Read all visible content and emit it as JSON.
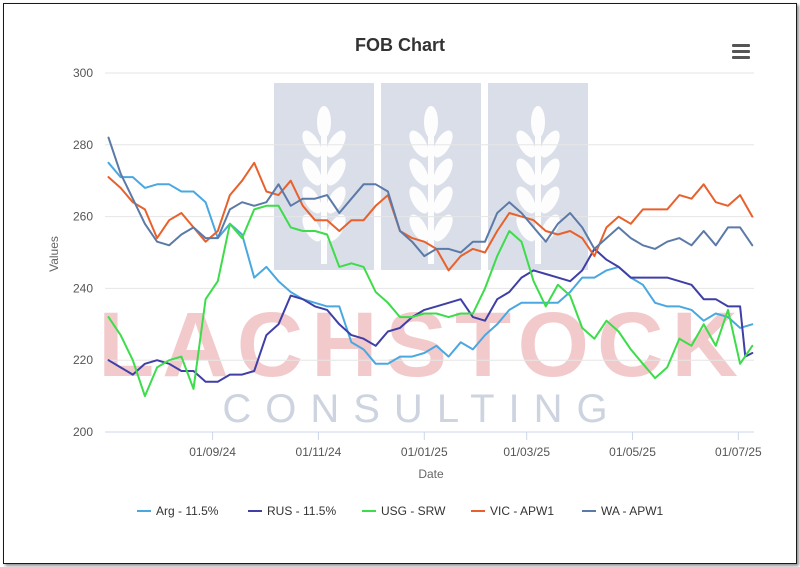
{
  "chart_data": {
    "type": "line",
    "title": "FOB Chart",
    "xlabel": "Date",
    "ylabel": "Values",
    "ylim": [
      200,
      300
    ],
    "yticks": [
      200,
      220,
      240,
      260,
      280,
      300
    ],
    "xlim": [
      "2024-07-01",
      "2025-07-10"
    ],
    "xticks": [
      {
        "date": "2024-09-01",
        "label": "01/09/24"
      },
      {
        "date": "2024-11-01",
        "label": "01/11/24"
      },
      {
        "date": "2025-01-01",
        "label": "01/01/25"
      },
      {
        "date": "2025-03-01",
        "label": "01/03/25"
      },
      {
        "date": "2025-05-01",
        "label": "01/05/25"
      },
      {
        "date": "2025-07-01",
        "label": "01/07/25"
      }
    ],
    "grid": "horizontal",
    "legend_position": "bottom",
    "series": [
      {
        "name": "Arg - 11.5%",
        "color": "#4aa8e0",
        "points": [
          [
            "2024-07-03",
            275
          ],
          [
            "2024-07-10",
            271
          ],
          [
            "2024-07-17",
            271
          ],
          [
            "2024-07-24",
            268
          ],
          [
            "2024-07-31",
            269
          ],
          [
            "2024-08-07",
            269
          ],
          [
            "2024-08-14",
            267
          ],
          [
            "2024-08-21",
            267
          ],
          [
            "2024-08-28",
            264
          ],
          [
            "2024-09-04",
            254
          ],
          [
            "2024-09-11",
            258
          ],
          [
            "2024-09-18",
            255
          ],
          [
            "2024-09-25",
            243
          ],
          [
            "2024-10-02",
            246
          ],
          [
            "2024-10-09",
            242
          ],
          [
            "2024-10-16",
            239
          ],
          [
            "2024-10-23",
            237
          ],
          [
            "2024-10-30",
            236
          ],
          [
            "2024-11-06",
            235
          ],
          [
            "2024-11-13",
            235
          ],
          [
            "2024-11-20",
            225
          ],
          [
            "2024-11-27",
            223
          ],
          [
            "2024-12-04",
            219
          ],
          [
            "2024-12-11",
            219
          ],
          [
            "2024-12-18",
            221
          ],
          [
            "2024-12-25",
            221
          ],
          [
            "2025-01-01",
            222
          ],
          [
            "2025-01-08",
            224
          ],
          [
            "2025-01-15",
            221
          ],
          [
            "2025-01-22",
            225
          ],
          [
            "2025-01-29",
            223
          ],
          [
            "2025-02-05",
            227
          ],
          [
            "2025-02-12",
            230
          ],
          [
            "2025-02-19",
            234
          ],
          [
            "2025-02-26",
            236
          ],
          [
            "2025-03-05",
            236
          ],
          [
            "2025-03-12",
            236
          ],
          [
            "2025-03-19",
            236
          ],
          [
            "2025-03-26",
            239
          ],
          [
            "2025-04-02",
            243
          ],
          [
            "2025-04-09",
            243
          ],
          [
            "2025-04-16",
            245
          ],
          [
            "2025-04-23",
            246
          ],
          [
            "2025-04-30",
            243
          ],
          [
            "2025-05-07",
            241
          ],
          [
            "2025-05-14",
            236
          ],
          [
            "2025-05-21",
            235
          ],
          [
            "2025-05-28",
            235
          ],
          [
            "2025-06-04",
            234
          ],
          [
            "2025-06-11",
            231
          ],
          [
            "2025-06-18",
            233
          ],
          [
            "2025-06-25",
            232
          ],
          [
            "2025-07-02",
            229
          ],
          [
            "2025-07-09",
            230
          ]
        ]
      },
      {
        "name": "RUS - 11.5%",
        "color": "#3f3fa6",
        "points": [
          [
            "2024-07-03",
            220
          ],
          [
            "2024-07-10",
            218
          ],
          [
            "2024-07-17",
            216
          ],
          [
            "2024-07-24",
            219
          ],
          [
            "2024-07-31",
            220
          ],
          [
            "2024-08-07",
            219
          ],
          [
            "2024-08-14",
            217
          ],
          [
            "2024-08-21",
            217
          ],
          [
            "2024-08-28",
            214
          ],
          [
            "2024-09-04",
            214
          ],
          [
            "2024-09-11",
            216
          ],
          [
            "2024-09-18",
            216
          ],
          [
            "2024-09-25",
            217
          ],
          [
            "2024-10-02",
            227
          ],
          [
            "2024-10-09",
            230
          ],
          [
            "2024-10-16",
            238
          ],
          [
            "2024-10-23",
            237
          ],
          [
            "2024-10-30",
            235
          ],
          [
            "2024-11-06",
            234
          ],
          [
            "2024-11-13",
            230
          ],
          [
            "2024-11-20",
            227
          ],
          [
            "2024-11-27",
            226
          ],
          [
            "2024-12-04",
            224
          ],
          [
            "2024-12-11",
            228
          ],
          [
            "2024-12-18",
            229
          ],
          [
            "2024-12-25",
            232
          ],
          [
            "2025-01-01",
            234
          ],
          [
            "2025-01-08",
            235
          ],
          [
            "2025-01-15",
            236
          ],
          [
            "2025-01-22",
            237
          ],
          [
            "2025-01-29",
            232
          ],
          [
            "2025-02-05",
            231
          ],
          [
            "2025-02-12",
            237
          ],
          [
            "2025-02-19",
            239
          ],
          [
            "2025-02-26",
            243
          ],
          [
            "2025-03-05",
            245
          ],
          [
            "2025-03-12",
            244
          ],
          [
            "2025-03-19",
            243
          ],
          [
            "2025-03-26",
            242
          ],
          [
            "2025-04-02",
            245
          ],
          [
            "2025-04-09",
            251
          ],
          [
            "2025-04-16",
            248
          ],
          [
            "2025-04-23",
            246
          ],
          [
            "2025-04-30",
            243
          ],
          [
            "2025-05-07",
            243
          ],
          [
            "2025-05-14",
            243
          ],
          [
            "2025-05-21",
            243
          ],
          [
            "2025-05-28",
            242
          ],
          [
            "2025-06-04",
            241
          ],
          [
            "2025-06-11",
            237
          ],
          [
            "2025-06-18",
            237
          ],
          [
            "2025-06-25",
            235
          ],
          [
            "2025-07-02",
            235
          ],
          [
            "2025-07-05",
            221
          ],
          [
            "2025-07-09",
            222
          ]
        ]
      },
      {
        "name": "USG - SRW",
        "color": "#3ddc4a",
        "points": [
          [
            "2024-07-03",
            232
          ],
          [
            "2024-07-10",
            227
          ],
          [
            "2024-07-17",
            220
          ],
          [
            "2024-07-24",
            210
          ],
          [
            "2024-07-31",
            218
          ],
          [
            "2024-08-07",
            220
          ],
          [
            "2024-08-14",
            221
          ],
          [
            "2024-08-21",
            212
          ],
          [
            "2024-08-28",
            237
          ],
          [
            "2024-09-04",
            242
          ],
          [
            "2024-09-11",
            258
          ],
          [
            "2024-09-18",
            254
          ],
          [
            "2024-09-25",
            262
          ],
          [
            "2024-10-02",
            263
          ],
          [
            "2024-10-09",
            263
          ],
          [
            "2024-10-16",
            257
          ],
          [
            "2024-10-23",
            256
          ],
          [
            "2024-10-30",
            256
          ],
          [
            "2024-11-06",
            255
          ],
          [
            "2024-11-13",
            246
          ],
          [
            "2024-11-20",
            247
          ],
          [
            "2024-11-27",
            246
          ],
          [
            "2024-12-04",
            239
          ],
          [
            "2024-12-11",
            236
          ],
          [
            "2024-12-18",
            232
          ],
          [
            "2024-12-25",
            232
          ],
          [
            "2025-01-01",
            233
          ],
          [
            "2025-01-08",
            233
          ],
          [
            "2025-01-15",
            232
          ],
          [
            "2025-01-22",
            233
          ],
          [
            "2025-01-29",
            233
          ],
          [
            "2025-02-05",
            240
          ],
          [
            "2025-02-12",
            249
          ],
          [
            "2025-02-19",
            256
          ],
          [
            "2025-02-26",
            253
          ],
          [
            "2025-03-05",
            242
          ],
          [
            "2025-03-12",
            235
          ],
          [
            "2025-03-19",
            241
          ],
          [
            "2025-03-26",
            238
          ],
          [
            "2025-04-02",
            229
          ],
          [
            "2025-04-09",
            226
          ],
          [
            "2025-04-16",
            231
          ],
          [
            "2025-04-23",
            228
          ],
          [
            "2025-04-30",
            223
          ],
          [
            "2025-05-07",
            219
          ],
          [
            "2025-05-14",
            215
          ],
          [
            "2025-05-21",
            218
          ],
          [
            "2025-05-28",
            226
          ],
          [
            "2025-06-04",
            224
          ],
          [
            "2025-06-11",
            230
          ],
          [
            "2025-06-18",
            224
          ],
          [
            "2025-06-25",
            234
          ],
          [
            "2025-07-02",
            219
          ],
          [
            "2025-07-09",
            224
          ]
        ]
      },
      {
        "name": "VIC - APW1",
        "color": "#e8612c",
        "points": [
          [
            "2024-07-03",
            271
          ],
          [
            "2024-07-10",
            268
          ],
          [
            "2024-07-17",
            264
          ],
          [
            "2024-07-24",
            262
          ],
          [
            "2024-07-31",
            254
          ],
          [
            "2024-08-07",
            259
          ],
          [
            "2024-08-14",
            261
          ],
          [
            "2024-08-21",
            257
          ],
          [
            "2024-08-28",
            253
          ],
          [
            "2024-09-04",
            256
          ],
          [
            "2024-09-11",
            266
          ],
          [
            "2024-09-18",
            270
          ],
          [
            "2024-09-25",
            275
          ],
          [
            "2024-10-02",
            267
          ],
          [
            "2024-10-09",
            266
          ],
          [
            "2024-10-16",
            270
          ],
          [
            "2024-10-23",
            263
          ],
          [
            "2024-10-30",
            259
          ],
          [
            "2024-11-06",
            259
          ],
          [
            "2024-11-13",
            256
          ],
          [
            "2024-11-20",
            259
          ],
          [
            "2024-11-27",
            259
          ],
          [
            "2024-12-04",
            263
          ],
          [
            "2024-12-11",
            266
          ],
          [
            "2024-12-18",
            256
          ],
          [
            "2024-12-25",
            254
          ],
          [
            "2025-01-01",
            253
          ],
          [
            "2025-01-08",
            251
          ],
          [
            "2025-01-15",
            245
          ],
          [
            "2025-01-22",
            249
          ],
          [
            "2025-01-29",
            251
          ],
          [
            "2025-02-05",
            250
          ],
          [
            "2025-02-12",
            256
          ],
          [
            "2025-02-19",
            261
          ],
          [
            "2025-02-26",
            260
          ],
          [
            "2025-03-05",
            259
          ],
          [
            "2025-03-12",
            256
          ],
          [
            "2025-03-19",
            255
          ],
          [
            "2025-03-26",
            256
          ],
          [
            "2025-04-02",
            254
          ],
          [
            "2025-04-09",
            249
          ],
          [
            "2025-04-16",
            257
          ],
          [
            "2025-04-23",
            260
          ],
          [
            "2025-04-30",
            258
          ],
          [
            "2025-05-07",
            262
          ],
          [
            "2025-05-14",
            262
          ],
          [
            "2025-05-21",
            262
          ],
          [
            "2025-05-28",
            266
          ],
          [
            "2025-06-04",
            265
          ],
          [
            "2025-06-11",
            269
          ],
          [
            "2025-06-18",
            264
          ],
          [
            "2025-06-25",
            263
          ],
          [
            "2025-07-02",
            266
          ],
          [
            "2025-07-09",
            260
          ]
        ]
      },
      {
        "name": "WA - APW1",
        "color": "#5b7aa8",
        "points": [
          [
            "2024-07-03",
            282
          ],
          [
            "2024-07-10",
            272
          ],
          [
            "2024-07-17",
            265
          ],
          [
            "2024-07-24",
            258
          ],
          [
            "2024-07-31",
            253
          ],
          [
            "2024-08-07",
            252
          ],
          [
            "2024-08-14",
            255
          ],
          [
            "2024-08-21",
            257
          ],
          [
            "2024-08-28",
            254
          ],
          [
            "2024-09-04",
            254
          ],
          [
            "2024-09-11",
            262
          ],
          [
            "2024-09-18",
            264
          ],
          [
            "2024-09-25",
            263
          ],
          [
            "2024-10-02",
            264
          ],
          [
            "2024-10-09",
            269
          ],
          [
            "2024-10-16",
            263
          ],
          [
            "2024-10-23",
            265
          ],
          [
            "2024-10-30",
            265
          ],
          [
            "2024-11-06",
            266
          ],
          [
            "2024-11-13",
            261
          ],
          [
            "2024-11-20",
            265
          ],
          [
            "2024-11-27",
            269
          ],
          [
            "2024-12-04",
            269
          ],
          [
            "2024-12-11",
            267
          ],
          [
            "2024-12-18",
            256
          ],
          [
            "2024-12-25",
            253
          ],
          [
            "2025-01-01",
            249
          ],
          [
            "2025-01-08",
            251
          ],
          [
            "2025-01-15",
            251
          ],
          [
            "2025-01-22",
            250
          ],
          [
            "2025-01-29",
            253
          ],
          [
            "2025-02-05",
            253
          ],
          [
            "2025-02-12",
            261
          ],
          [
            "2025-02-19",
            264
          ],
          [
            "2025-02-26",
            261
          ],
          [
            "2025-03-05",
            257
          ],
          [
            "2025-03-12",
            253
          ],
          [
            "2025-03-19",
            258
          ],
          [
            "2025-03-26",
            261
          ],
          [
            "2025-04-02",
            257
          ],
          [
            "2025-04-09",
            251
          ],
          [
            "2025-04-16",
            254
          ],
          [
            "2025-04-23",
            257
          ],
          [
            "2025-04-30",
            254
          ],
          [
            "2025-05-07",
            252
          ],
          [
            "2025-05-14",
            251
          ],
          [
            "2025-05-21",
            253
          ],
          [
            "2025-05-28",
            254
          ],
          [
            "2025-06-04",
            252
          ],
          [
            "2025-06-11",
            256
          ],
          [
            "2025-06-18",
            252
          ],
          [
            "2025-06-25",
            257
          ],
          [
            "2025-07-02",
            257
          ],
          [
            "2025-07-09",
            252
          ]
        ]
      }
    ]
  },
  "watermark": {
    "logo": "wheat-logo",
    "line1": "LACHSTOCK",
    "line2": "CONSULTING"
  },
  "menu_icon": "hamburger-menu-icon"
}
